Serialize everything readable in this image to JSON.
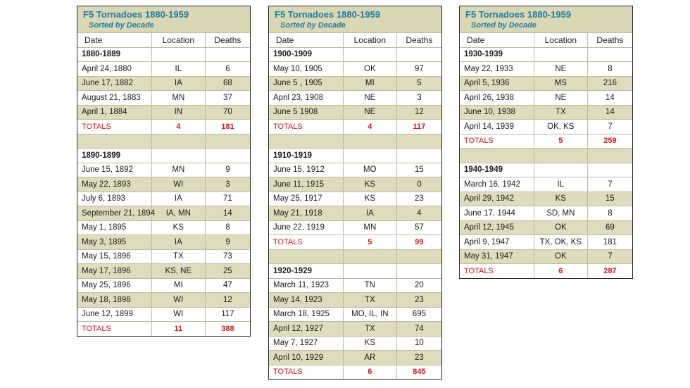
{
  "table_title": "F5 Tornadoes 1880-1959",
  "table_subtitle": "Sorted by Decade",
  "columns": {
    "date": "Date",
    "location": "Location",
    "deaths": "Deaths"
  },
  "totals_label": "TOTALS",
  "colors": {
    "title": "#1e7fa0",
    "shade": "#dedcbc",
    "totals": "#d3151c"
  },
  "tables": [
    {
      "decades": [
        {
          "label": "1880-1889",
          "rows": [
            [
              "April 24, 1880",
              "IL",
              "6"
            ],
            [
              "June 17, 1882",
              "IA",
              "68"
            ],
            [
              "August 21, 1883",
              "MN",
              "37"
            ],
            [
              "April 1, 1884",
              "IN",
              "70"
            ]
          ],
          "totals": [
            "4",
            "181"
          ]
        },
        {
          "label": "1890-1899",
          "rows": [
            [
              "June 15, 1892",
              "MN",
              "9"
            ],
            [
              "May 22, 1893",
              "WI",
              "3"
            ],
            [
              "July 6, 1893",
              "IA",
              "71"
            ],
            [
              "September 21, 1894",
              "IA, MN",
              "14"
            ],
            [
              "May 1, 1895",
              "KS",
              "8"
            ],
            [
              "May 3, 1895",
              "IA",
              "9"
            ],
            [
              "May 15, 1896",
              "TX",
              "73"
            ],
            [
              "May 17, 1896",
              "KS, NE",
              "25"
            ],
            [
              "May 25, 1896",
              "MI",
              "47"
            ],
            [
              "May 18, 1898",
              "WI",
              "12"
            ],
            [
              "June 12, 1899",
              "WI",
              "117"
            ]
          ],
          "totals": [
            "11",
            "388"
          ]
        }
      ]
    },
    {
      "decades": [
        {
          "label": "1900-1909",
          "rows": [
            [
              "May 10, 1905",
              "OK",
              "97"
            ],
            [
              "June 5 , 1905",
              "MI",
              "5"
            ],
            [
              "April 23, 1908",
              "NE",
              "3"
            ],
            [
              "June 5  1908",
              "NE",
              "12"
            ]
          ],
          "totals": [
            "4",
            "117"
          ]
        },
        {
          "label": "1910-1919",
          "rows": [
            [
              "June 15, 1912",
              "MO",
              "15"
            ],
            [
              "June 11, 1915",
              "KS",
              "0"
            ],
            [
              "May 25, 1917",
              "KS",
              "23"
            ],
            [
              "May 21, 1918",
              "IA",
              "4"
            ],
            [
              "June 22, 1919",
              "MN",
              "57"
            ]
          ],
          "totals": [
            "5",
            "99"
          ]
        },
        {
          "label": "1920-1929",
          "rows": [
            [
              "March 11, 1923",
              "TN",
              "20"
            ],
            [
              "May 14, 1923",
              "TX",
              "23"
            ],
            [
              "March 18, 1925",
              "MO, IL, IN",
              "695"
            ],
            [
              "April 12, 1927",
              "TX",
              "74"
            ],
            [
              "May 7, 1927",
              "KS",
              "10"
            ],
            [
              "April 10, 1929",
              "AR",
              "23"
            ]
          ],
          "totals": [
            "6",
            "845"
          ]
        }
      ]
    },
    {
      "decades": [
        {
          "label": "1930-1939",
          "rows": [
            [
              "May 22, 1933",
              "NE",
              "8"
            ],
            [
              "April 5, 1936",
              "MS",
              "216"
            ],
            [
              "April 26, 1938",
              "NE",
              "14"
            ],
            [
              "June 10, 1938",
              "TX",
              "14"
            ],
            [
              "April 14, 1939",
              "OK, KS",
              "7"
            ]
          ],
          "totals": [
            "5",
            "259"
          ]
        },
        {
          "label": "1940-1949",
          "rows": [
            [
              "March 16, 1942",
              "IL",
              "7"
            ],
            [
              "April 29, 1942",
              "KS",
              "15"
            ],
            [
              "June 17, 1944",
              "SD, MN",
              "8"
            ],
            [
              "April 12, 1945",
              "OK",
              "69"
            ],
            [
              "April 9, 1947",
              "TX, OK, KS",
              "181"
            ],
            [
              "May 31, 1947",
              "OK",
              "7"
            ]
          ],
          "totals": [
            "6",
            "287"
          ]
        }
      ]
    }
  ]
}
